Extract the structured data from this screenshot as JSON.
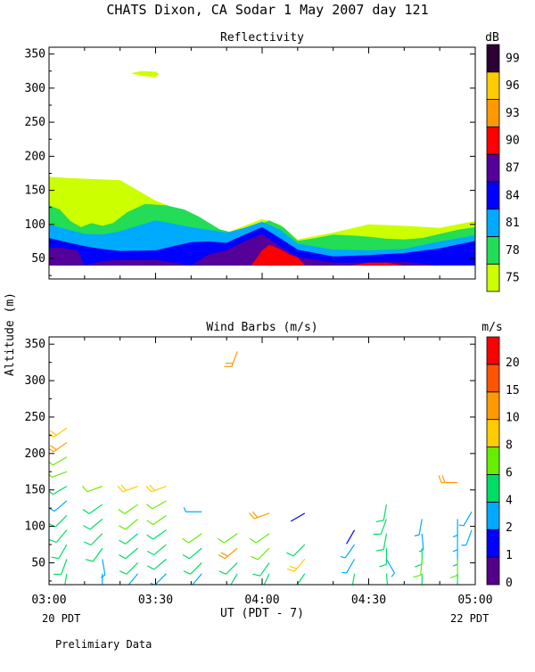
{
  "title": "CHATS Dixon, CA  Sodar   1 May 2007  day 121",
  "y_axis_label": "Altitude (m)",
  "x_axis_label": "UT  (PDT - 7)",
  "date_left": "20 PDT",
  "date_right": "22 PDT",
  "footnote": "Prelimiary Data",
  "chart_data": [
    {
      "type": "area",
      "title": "Reflectivity",
      "units": "dB",
      "x_ticks": [
        "03:00",
        "03:30",
        "04:00",
        "04:30",
        "05:00"
      ],
      "y_ticks": [
        "50",
        "100",
        "150",
        "200",
        "250",
        "300",
        "350"
      ],
      "ylim": [
        20,
        360
      ],
      "xlim_minutes": [
        0,
        120
      ],
      "colorbar": {
        "labels": [
          "75",
          "78",
          "81",
          "84",
          "87",
          "90",
          "93",
          "96",
          "99"
        ],
        "colors": [
          "#ccff00",
          "#22dd55",
          "#00aaff",
          "#0000ff",
          "#550099",
          "#ff0000",
          "#ff9900",
          "#ffcc00",
          "#2b0033"
        ]
      },
      "layers": [
        {
          "level": "75",
          "color": "#ccff00",
          "x": [
            0,
            5,
            20,
            30,
            40,
            45,
            50,
            55,
            60,
            65,
            70,
            80,
            90,
            100,
            110,
            120
          ],
          "top": [
            170,
            168,
            165,
            135,
            115,
            100,
            88,
            98,
            108,
            100,
            78,
            88,
            100,
            98,
            95,
            105
          ],
          "bottom": [
            40,
            40,
            40,
            40,
            40,
            40,
            40,
            40,
            40,
            40,
            40,
            40,
            40,
            40,
            40,
            40
          ]
        },
        {
          "level": "78",
          "color": "#22dd55",
          "x": [
            0,
            3,
            6,
            9,
            12,
            15,
            18,
            22,
            27,
            33,
            38,
            42,
            48,
            53,
            58,
            62,
            66,
            70,
            75,
            80,
            85,
            90,
            95,
            100,
            105,
            110,
            115,
            120
          ],
          "top": [
            128,
            122,
            105,
            96,
            102,
            98,
            102,
            118,
            130,
            128,
            122,
            112,
            93,
            86,
            97,
            106,
            96,
            76,
            80,
            85,
            84,
            82,
            79,
            78,
            80,
            86,
            92,
            96
          ],
          "bottom": [
            40,
            40,
            40,
            40,
            40,
            40,
            40,
            40,
            40,
            40,
            40,
            40,
            40,
            40,
            40,
            40,
            40,
            40,
            40,
            40,
            40,
            40,
            40,
            40,
            40,
            40,
            40,
            40
          ]
        },
        {
          "level": "81",
          "color": "#00aaff",
          "x": [
            0,
            5,
            10,
            15,
            20,
            30,
            40,
            45,
            50,
            55,
            60,
            65,
            70,
            80,
            90,
            100,
            110,
            120
          ],
          "top": [
            100,
            93,
            86,
            85,
            90,
            106,
            96,
            92,
            88,
            95,
            104,
            92,
            72,
            63,
            62,
            64,
            75,
            84
          ],
          "bottom": [
            40,
            40,
            40,
            40,
            40,
            40,
            40,
            40,
            40,
            40,
            40,
            40,
            40,
            40,
            40,
            40,
            40,
            40
          ]
        },
        {
          "level": "84",
          "color": "#0000ff",
          "x": [
            0,
            5,
            10,
            15,
            20,
            30,
            40,
            45,
            50,
            55,
            60,
            65,
            70,
            80,
            90,
            100,
            110,
            120
          ],
          "top": [
            80,
            74,
            68,
            64,
            61,
            62,
            74,
            75,
            73,
            85,
            96,
            80,
            63,
            53,
            55,
            58,
            65,
            76
          ],
          "bottom": [
            40,
            40,
            40,
            40,
            40,
            40,
            40,
            40,
            40,
            40,
            40,
            40,
            40,
            40,
            40,
            40,
            40,
            40
          ]
        },
        {
          "level": "87",
          "color": "#550099",
          "x": [
            0,
            3,
            8,
            10,
            15,
            20,
            30,
            35,
            40,
            45,
            50,
            55,
            60,
            65,
            70,
            80,
            90,
            100,
            110,
            120
          ],
          "top": [
            65,
            66,
            62,
            40,
            46,
            48,
            48,
            44,
            40,
            56,
            62,
            75,
            86,
            68,
            52,
            44,
            44,
            45,
            40,
            40
          ],
          "bottom": [
            40,
            40,
            40,
            40,
            40,
            40,
            40,
            40,
            40,
            40,
            40,
            40,
            40,
            40,
            40,
            40,
            40,
            40,
            40,
            40
          ]
        },
        {
          "level": "90",
          "color": "#ff0000",
          "x": [
            57,
            60,
            62,
            65,
            68,
            70,
            72,
            85,
            90,
            95,
            100
          ],
          "top": [
            40,
            62,
            70,
            64,
            55,
            52,
            40,
            40,
            44,
            44,
            40
          ],
          "bottom": [
            40,
            40,
            40,
            40,
            40,
            40,
            40,
            40,
            40,
            40,
            40
          ]
        }
      ],
      "blobs": [
        {
          "level": "75",
          "color": "#ccff00",
          "x": [
            23,
            26,
            30,
            31,
            30,
            26,
            23
          ],
          "y": [
            322,
            325,
            324,
            321,
            316,
            318,
            322
          ]
        }
      ]
    },
    {
      "type": "wind_barbs",
      "title": "Wind Barbs (m/s)",
      "units": "m/s",
      "x_ticks": [
        "03:00",
        "03:30",
        "04:00",
        "04:30",
        "05:00"
      ],
      "y_ticks": [
        "50",
        "100",
        "150",
        "200",
        "250",
        "300",
        "350"
      ],
      "ylim": [
        20,
        360
      ],
      "xlim_minutes": [
        0,
        120
      ],
      "colorbar": {
        "labels": [
          "0",
          "1",
          "2",
          "4",
          "6",
          "8",
          "10",
          "15",
          "20"
        ],
        "colors": [
          "#550088",
          "#0000ff",
          "#00aaff",
          "#00dd66",
          "#66ee00",
          "#ffcc00",
          "#ff9900",
          "#ff5500",
          "#ff0000"
        ]
      },
      "barbs": [
        {
          "t": 5,
          "z": 235,
          "dir": 235,
          "spd": 8
        },
        {
          "t": 5,
          "z": 215,
          "dir": 235,
          "spd": 10
        },
        {
          "t": 5,
          "z": 195,
          "dir": 240,
          "spd": 7
        },
        {
          "t": 5,
          "z": 175,
          "dir": 250,
          "spd": 6
        },
        {
          "t": 5,
          "z": 155,
          "dir": 240,
          "spd": 4
        },
        {
          "t": 5,
          "z": 135,
          "dir": 230,
          "spd": 3
        },
        {
          "t": 5,
          "z": 115,
          "dir": 225,
          "spd": 4
        },
        {
          "t": 5,
          "z": 95,
          "dir": 220,
          "spd": 4
        },
        {
          "t": 5,
          "z": 75,
          "dir": 210,
          "spd": 4
        },
        {
          "t": 5,
          "z": 55,
          "dir": 200,
          "spd": 4
        },
        {
          "t": 5,
          "z": 35,
          "dir": 190,
          "spd": 4
        },
        {
          "t": 15,
          "z": 155,
          "dir": 250,
          "spd": 6
        },
        {
          "t": 15,
          "z": 130,
          "dir": 235,
          "spd": 4
        },
        {
          "t": 15,
          "z": 110,
          "dir": 230,
          "spd": 4
        },
        {
          "t": 15,
          "z": 90,
          "dir": 225,
          "spd": 4
        },
        {
          "t": 15,
          "z": 70,
          "dir": 215,
          "spd": 4
        },
        {
          "t": 15,
          "z": 55,
          "dir": 170,
          "spd": 2
        },
        {
          "t": 15,
          "z": 35,
          "dir": 180,
          "spd": 2
        },
        {
          "t": 25,
          "z": 155,
          "dir": 250,
          "spd": 8
        },
        {
          "t": 25,
          "z": 130,
          "dir": 235,
          "spd": 6
        },
        {
          "t": 25,
          "z": 110,
          "dir": 230,
          "spd": 6
        },
        {
          "t": 25,
          "z": 90,
          "dir": 230,
          "spd": 4
        },
        {
          "t": 25,
          "z": 70,
          "dir": 230,
          "spd": 4
        },
        {
          "t": 25,
          "z": 50,
          "dir": 225,
          "spd": 4
        },
        {
          "t": 25,
          "z": 35,
          "dir": 220,
          "spd": 2
        },
        {
          "t": 33,
          "z": 155,
          "dir": 250,
          "spd": 8
        },
        {
          "t": 33,
          "z": 135,
          "dir": 240,
          "spd": 6
        },
        {
          "t": 33,
          "z": 115,
          "dir": 235,
          "spd": 6
        },
        {
          "t": 33,
          "z": 95,
          "dir": 235,
          "spd": 4
        },
        {
          "t": 33,
          "z": 75,
          "dir": 230,
          "spd": 4
        },
        {
          "t": 33,
          "z": 55,
          "dir": 230,
          "spd": 4
        },
        {
          "t": 33,
          "z": 35,
          "dir": 225,
          "spd": 2
        },
        {
          "t": 43,
          "z": 120,
          "dir": 270,
          "spd": 2
        },
        {
          "t": 43,
          "z": 90,
          "dir": 235,
          "spd": 6
        },
        {
          "t": 43,
          "z": 70,
          "dir": 230,
          "spd": 4
        },
        {
          "t": 43,
          "z": 50,
          "dir": 225,
          "spd": 4
        },
        {
          "t": 43,
          "z": 35,
          "dir": 220,
          "spd": 2
        },
        {
          "t": 53,
          "z": 340,
          "dir": 200,
          "spd": 10
        },
        {
          "t": 53,
          "z": 90,
          "dir": 235,
          "spd": 6
        },
        {
          "t": 53,
          "z": 70,
          "dir": 230,
          "spd": 10
        },
        {
          "t": 53,
          "z": 50,
          "dir": 225,
          "spd": 4
        },
        {
          "t": 53,
          "z": 35,
          "dir": 210,
          "spd": 4
        },
        {
          "t": 62,
          "z": 118,
          "dir": 250,
          "spd": 10
        },
        {
          "t": 62,
          "z": 90,
          "dir": 235,
          "spd": 6
        },
        {
          "t": 62,
          "z": 70,
          "dir": 225,
          "spd": 6
        },
        {
          "t": 62,
          "z": 50,
          "dir": 215,
          "spd": 4
        },
        {
          "t": 62,
          "z": 35,
          "dir": 205,
          "spd": 4
        },
        {
          "t": 72,
          "z": 118,
          "dir": 240,
          "spd": 1
        },
        {
          "t": 72,
          "z": 75,
          "dir": 225,
          "spd": 4
        },
        {
          "t": 72,
          "z": 55,
          "dir": 220,
          "spd": 8
        },
        {
          "t": 72,
          "z": 35,
          "dir": 215,
          "spd": 4
        },
        {
          "t": 86,
          "z": 95,
          "dir": 210,
          "spd": 1
        },
        {
          "t": 86,
          "z": 75,
          "dir": 215,
          "spd": 2
        },
        {
          "t": 86,
          "z": 55,
          "dir": 210,
          "spd": 2
        },
        {
          "t": 86,
          "z": 35,
          "dir": 190,
          "spd": 4
        },
        {
          "t": 95,
          "z": 130,
          "dir": 190,
          "spd": 4
        },
        {
          "t": 95,
          "z": 110,
          "dir": 200,
          "spd": 4
        },
        {
          "t": 95,
          "z": 90,
          "dir": 190,
          "spd": 4
        },
        {
          "t": 95,
          "z": 70,
          "dir": 180,
          "spd": 4
        },
        {
          "t": 95,
          "z": 55,
          "dir": 150,
          "spd": 2
        },
        {
          "t": 95,
          "z": 35,
          "dir": 175,
          "spd": 4
        },
        {
          "t": 105,
          "z": 110,
          "dir": 190,
          "spd": 2
        },
        {
          "t": 105,
          "z": 90,
          "dir": 175,
          "spd": 2
        },
        {
          "t": 105,
          "z": 70,
          "dir": 180,
          "spd": 4
        },
        {
          "t": 105,
          "z": 55,
          "dir": 185,
          "spd": 6
        },
        {
          "t": 105,
          "z": 35,
          "dir": 180,
          "spd": 4
        },
        {
          "t": 115,
          "z": 160,
          "dir": 270,
          "spd": 10
        },
        {
          "t": 115,
          "z": 110,
          "dir": 180,
          "spd": 2
        },
        {
          "t": 115,
          "z": 90,
          "dir": 180,
          "spd": 2
        },
        {
          "t": 115,
          "z": 70,
          "dir": 180,
          "spd": 2
        },
        {
          "t": 115,
          "z": 55,
          "dir": 180,
          "spd": 6
        },
        {
          "t": 115,
          "z": 35,
          "dir": 180,
          "spd": 4
        },
        {
          "t": 119,
          "z": 120,
          "dir": 210,
          "spd": 2
        },
        {
          "t": 119,
          "z": 95,
          "dir": 200,
          "spd": 2
        }
      ]
    }
  ]
}
